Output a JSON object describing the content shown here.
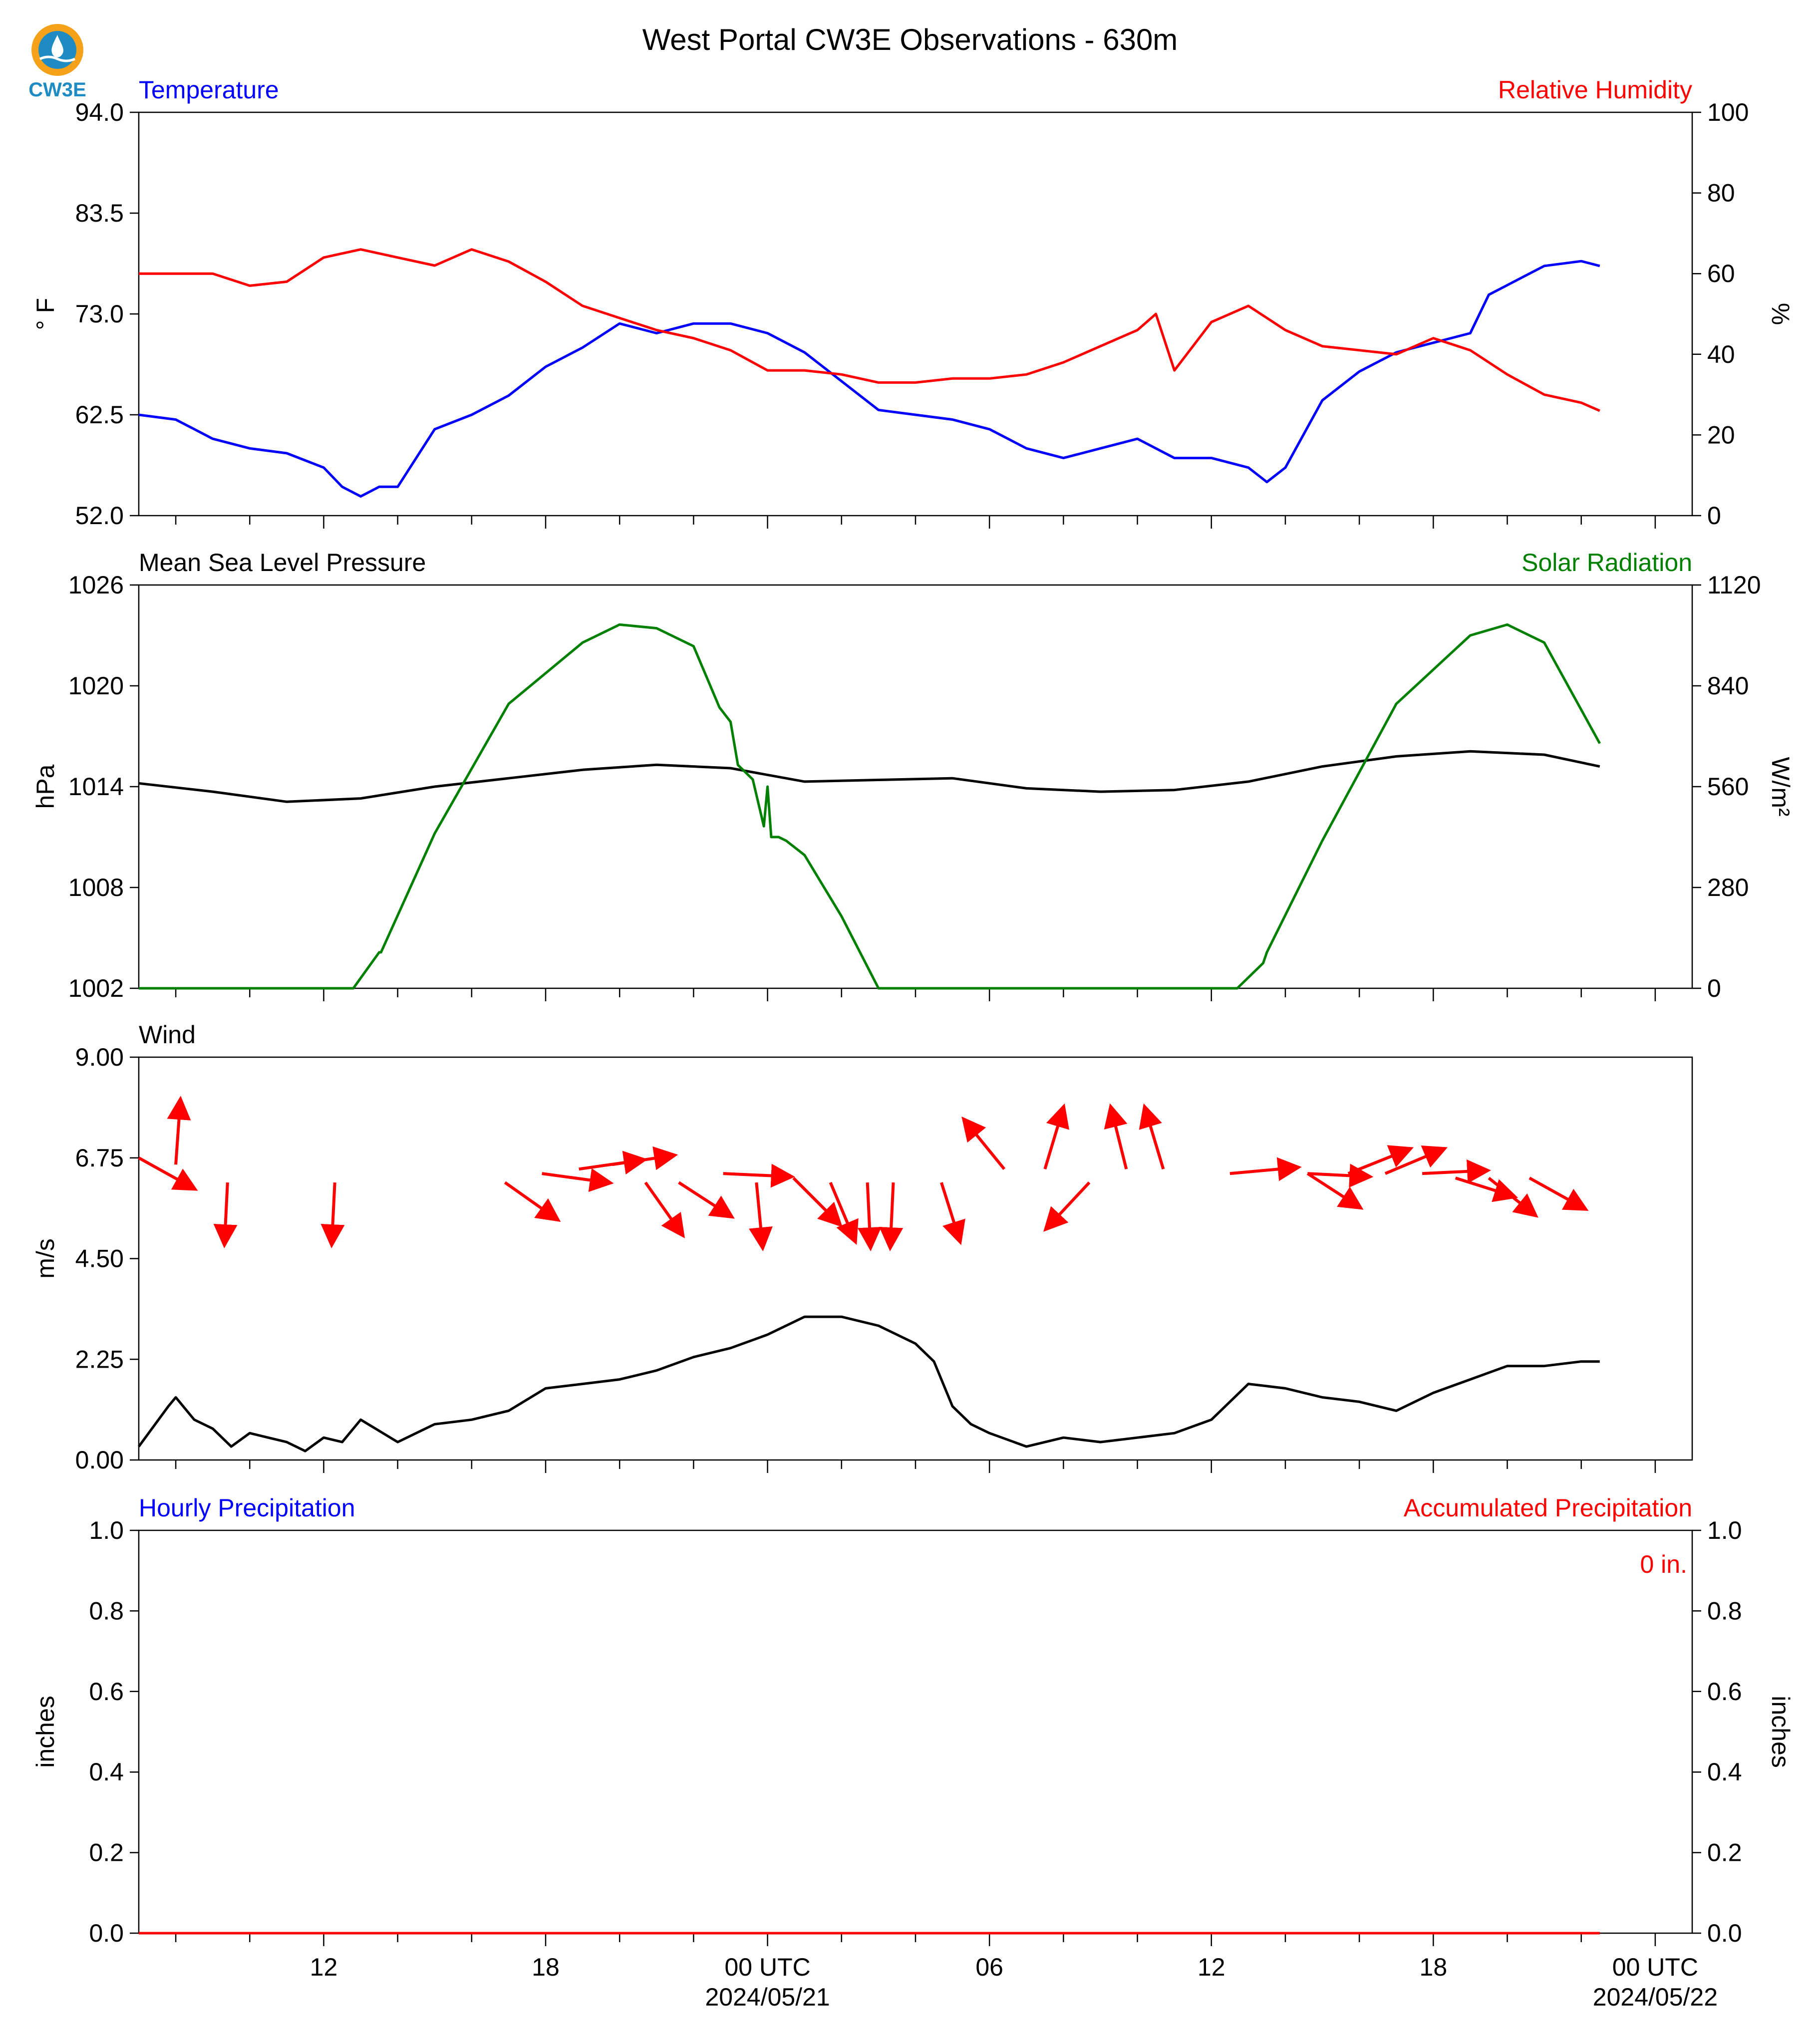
{
  "page": {
    "title": "West Portal CW3E Observations - 630m",
    "logo_text": "CW3E"
  },
  "x_axis": {
    "tick_labels": [
      {
        "hour": 12,
        "label": "12"
      },
      {
        "hour": 18,
        "label": "18"
      },
      {
        "hour": 24,
        "label": "00 UTC",
        "date": "2024/05/21"
      },
      {
        "hour": 30,
        "label": "06"
      },
      {
        "hour": 36,
        "label": "12"
      },
      {
        "hour": 42,
        "label": "18"
      },
      {
        "hour": 48,
        "label": "00 UTC",
        "date": "2024/05/22"
      }
    ],
    "minor_tick_every_hours": 2,
    "range_hours": [
      7,
      49
    ]
  },
  "colors": {
    "blue": "#0000ff",
    "red": "#ff0000",
    "green": "#008000",
    "black": "#000000"
  },
  "chart_data": [
    {
      "type": "line",
      "left_title": "Temperature",
      "right_title": "Relative Humidity",
      "ylabel_left": "° F",
      "ylabel_right": "%",
      "ylim_left": [
        52.0,
        94.0
      ],
      "ylim_right": [
        0,
        100
      ],
      "yticks_left": [
        "52.0",
        "62.5",
        "73.0",
        "83.5",
        "94.0"
      ],
      "yticks_right": [
        "0",
        "20",
        "40",
        "60",
        "80",
        "100"
      ],
      "series": [
        {
          "name": "Temperature",
          "axis": "left",
          "color": "#0000ff",
          "x": [
            7,
            8,
            9,
            10,
            11,
            12,
            12.5,
            13,
            13.5,
            14,
            15,
            16,
            17,
            18,
            19,
            20,
            21,
            22,
            23,
            24,
            25,
            26,
            27,
            28,
            29,
            30,
            31,
            32,
            33,
            34,
            35,
            36,
            37,
            37.5,
            38,
            39,
            40,
            41,
            42,
            43,
            43.5,
            44,
            45,
            46,
            46.5
          ],
          "y": [
            62.5,
            62,
            60,
            59,
            58.5,
            57,
            55,
            54,
            55,
            55,
            61,
            62.5,
            64.5,
            67.5,
            69.5,
            72,
            71,
            72,
            72,
            71,
            69,
            66,
            63,
            62.5,
            62,
            61,
            59,
            58,
            59,
            60,
            58,
            58,
            57,
            55.5,
            57,
            64,
            67,
            69,
            70,
            71,
            75,
            76,
            78,
            78.5,
            78
          ]
        },
        {
          "name": "Relative Humidity",
          "axis": "right",
          "color": "#ff0000",
          "x": [
            7,
            8,
            9,
            10,
            11,
            12,
            13,
            14,
            15,
            16,
            17,
            18,
            19,
            20,
            21,
            22,
            23,
            24,
            25,
            26,
            27,
            28,
            29,
            30,
            31,
            32,
            33,
            34,
            34.5,
            35,
            36,
            37,
            38,
            39,
            40,
            41,
            42,
            43,
            44,
            45,
            46,
            46.5
          ],
          "y": [
            60,
            60,
            60,
            57,
            58,
            64,
            66,
            64,
            62,
            66,
            63,
            58,
            52,
            49,
            46,
            44,
            41,
            36,
            36,
            35,
            33,
            33,
            34,
            34,
            35,
            38,
            42,
            46,
            50,
            36,
            48,
            52,
            46,
            42,
            41,
            40,
            44,
            41,
            35,
            30,
            28,
            26
          ]
        }
      ]
    },
    {
      "type": "line",
      "left_title": "Mean Sea Level Pressure",
      "right_title": "Solar Radiation",
      "ylabel_left": "hPa",
      "ylabel_right": "W/m²",
      "ylim_left": [
        1002,
        1026
      ],
      "ylim_right": [
        0,
        1120
      ],
      "yticks_left": [
        "1002",
        "1008",
        "1014",
        "1020",
        "1026"
      ],
      "yticks_right": [
        "0",
        "280",
        "560",
        "840",
        "1120"
      ],
      "series": [
        {
          "name": "Mean Sea Level Pressure",
          "axis": "left",
          "color": "#000000",
          "x": [
            7,
            9,
            11,
            13,
            15,
            17,
            19,
            21,
            23,
            25,
            27,
            29,
            31,
            33,
            35,
            37,
            39,
            41,
            43,
            45,
            46.5
          ],
          "y": [
            1014.2,
            1013.7,
            1013.1,
            1013.3,
            1014,
            1014.5,
            1015,
            1015.3,
            1015.1,
            1014.3,
            1014.4,
            1014.5,
            1013.9,
            1013.7,
            1013.8,
            1014.3,
            1015.2,
            1015.8,
            1016.1,
            1015.9,
            1015.2
          ]
        },
        {
          "name": "Solar Radiation",
          "axis": "right",
          "color": "#008000",
          "x": [
            7,
            12.8,
            13.5,
            13.55,
            15,
            17,
            19,
            20,
            21,
            22,
            22.7,
            23,
            23.2,
            23.4,
            23.6,
            23.9,
            24,
            24.1,
            24.3,
            24.5,
            25,
            26,
            27,
            30,
            36.7,
            37.4,
            37.5,
            39,
            41,
            43,
            44,
            45,
            46.5
          ],
          "y": [
            0,
            0,
            100,
            100,
            430,
            790,
            960,
            1010,
            1000,
            950,
            780,
            740,
            620,
            600,
            580,
            450,
            560,
            420,
            420,
            410,
            370,
            200,
            0,
            0,
            0,
            70,
            100,
            410,
            790,
            980,
            1010,
            960,
            680
          ]
        }
      ]
    },
    {
      "type": "line",
      "left_title": "Wind",
      "ylabel_left": "m/s",
      "ylim_left": [
        0.0,
        9.0
      ],
      "yticks_left": [
        "0.00",
        "2.25",
        "4.50",
        "6.75",
        "9.00"
      ],
      "series": [
        {
          "name": "Wind Speed",
          "axis": "left",
          "color": "#000000",
          "x": [
            7,
            7.8,
            8,
            8.5,
            9,
            9.5,
            10,
            10.5,
            11,
            11.5,
            12,
            12.5,
            13,
            14,
            15,
            16,
            17,
            18,
            19,
            20,
            21,
            22,
            23,
            24,
            25,
            26,
            27,
            28,
            28.5,
            29,
            29.5,
            30,
            31,
            32,
            33,
            34,
            35,
            36,
            37,
            38,
            39,
            40,
            41,
            42,
            43,
            44,
            45,
            46,
            46.5
          ],
          "y": [
            0.3,
            1.2,
            1.4,
            0.9,
            0.7,
            0.3,
            0.6,
            0.5,
            0.4,
            0.2,
            0.5,
            0.4,
            0.9,
            0.4,
            0.8,
            0.9,
            1.1,
            1.6,
            1.7,
            1.8,
            2,
            2.3,
            2.5,
            2.8,
            3.2,
            3.2,
            3,
            2.6,
            2.2,
            1.2,
            0.8,
            0.6,
            0.3,
            0.5,
            0.4,
            0.5,
            0.6,
            0.9,
            1.7,
            1.6,
            1.4,
            1.3,
            1.1,
            1.5,
            1.8,
            2.1,
            2.1,
            2.2,
            2.2
          ]
        },
        {
          "name": "Wind Direction",
          "axis": "left",
          "color": "#ff0000",
          "type": "quiver",
          "points": [
            {
              "x": 7.0,
              "y": 6.75,
              "u": 1.8,
              "v": -1.0
            },
            {
              "x": 8.0,
              "y": 6.6,
              "u": 0.15,
              "v": 2.1
            },
            {
              "x": 9.4,
              "y": 6.2,
              "u": -0.1,
              "v": -2.0
            },
            {
              "x": 12.3,
              "y": 6.2,
              "u": -0.1,
              "v": -2.0
            },
            {
              "x": 16.9,
              "y": 6.2,
              "u": 1.7,
              "v": -1.2
            },
            {
              "x": 17.9,
              "y": 6.4,
              "u": 2.2,
              "v": -0.3
            },
            {
              "x": 18.9,
              "y": 6.5,
              "u": 2.1,
              "v": 0.3
            },
            {
              "x": 19.8,
              "y": 6.6,
              "u": 2.0,
              "v": 0.3
            },
            {
              "x": 20.7,
              "y": 6.2,
              "u": 1.2,
              "v": -1.7
            },
            {
              "x": 21.6,
              "y": 6.2,
              "u": 1.7,
              "v": -1.1
            },
            {
              "x": 22.8,
              "y": 6.4,
              "u": 2.2,
              "v": -0.1
            },
            {
              "x": 23.7,
              "y": 6.2,
              "u": 0.2,
              "v": -2.1
            },
            {
              "x": 24.7,
              "y": 6.3,
              "u": 1.5,
              "v": -1.5
            },
            {
              "x": 25.7,
              "y": 6.2,
              "u": 0.8,
              "v": -1.9
            },
            {
              "x": 26.7,
              "y": 6.2,
              "u": 0.1,
              "v": -2.1
            },
            {
              "x": 27.4,
              "y": 6.2,
              "u": -0.1,
              "v": -2.1
            },
            {
              "x": 28.7,
              "y": 6.2,
              "u": 0.6,
              "v": -1.9
            },
            {
              "x": 30.4,
              "y": 6.5,
              "u": -1.3,
              "v": 1.6
            },
            {
              "x": 31.5,
              "y": 6.5,
              "u": 0.6,
              "v": 2.0
            },
            {
              "x": 32.7,
              "y": 6.2,
              "u": -1.4,
              "v": -1.5
            },
            {
              "x": 33.7,
              "y": 6.5,
              "u": -0.5,
              "v": 2.0
            },
            {
              "x": 34.7,
              "y": 6.5,
              "u": -0.6,
              "v": 2.0
            },
            {
              "x": 36.5,
              "y": 6.4,
              "u": 2.2,
              "v": 0.2
            },
            {
              "x": 38.6,
              "y": 6.4,
              "u": 2.0,
              "v": -0.1
            },
            {
              "x": 38.6,
              "y": 6.4,
              "u": 1.7,
              "v": -1.1
            },
            {
              "x": 39.7,
              "y": 6.4,
              "u": 2.0,
              "v": 0.8
            },
            {
              "x": 40.7,
              "y": 6.4,
              "u": 1.9,
              "v": 0.8
            },
            {
              "x": 41.7,
              "y": 6.4,
              "u": 2.1,
              "v": 0.1
            },
            {
              "x": 42.6,
              "y": 6.3,
              "u": 1.9,
              "v": -0.6
            },
            {
              "x": 43.5,
              "y": 6.3,
              "u": 1.5,
              "v": -1.2
            },
            {
              "x": 44.6,
              "y": 6.3,
              "u": 1.8,
              "v": -1.0
            }
          ]
        }
      ]
    },
    {
      "type": "bar",
      "left_title": "Hourly Precipitation",
      "right_title": "Accumulated Precipitation",
      "ylabel_left": "inches",
      "ylabel_right": "inches",
      "ylim_left": [
        0.0,
        1.0
      ],
      "ylim_right": [
        0.0,
        1.0
      ],
      "yticks_left": [
        "0.0",
        "0.2",
        "0.4",
        "0.6",
        "0.8",
        "1.0"
      ],
      "yticks_right": [
        "0.0",
        "0.2",
        "0.4",
        "0.6",
        "0.8",
        "1.0"
      ],
      "annotation": "0 in.",
      "series": [
        {
          "name": "Hourly Precipitation",
          "axis": "left",
          "color": "#0000ff",
          "x": [
            7,
            46.5
          ],
          "y": [
            0,
            0
          ]
        },
        {
          "name": "Accumulated Precipitation",
          "axis": "right",
          "color": "#ff0000",
          "x": [
            7,
            46.5
          ],
          "y": [
            0,
            0
          ]
        }
      ]
    }
  ]
}
